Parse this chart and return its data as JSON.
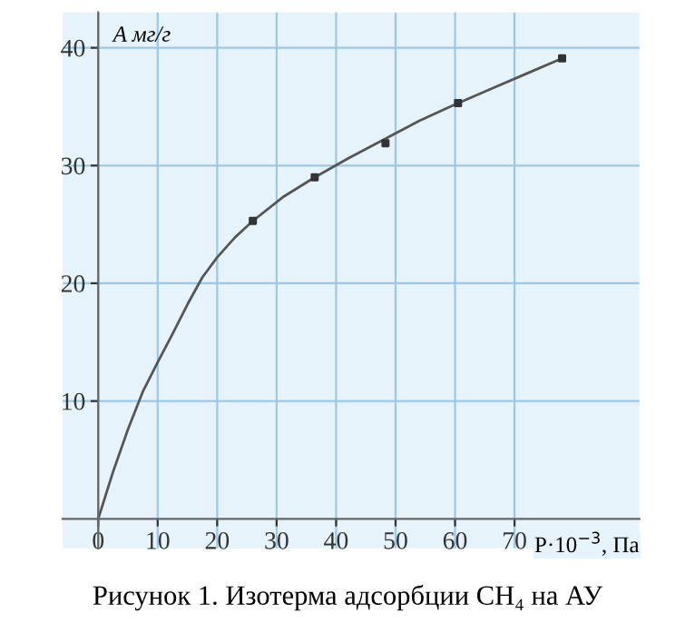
{
  "chart_data": {
    "type": "line",
    "title": "Рисунок 1. Изотерма адсорбции CH₄ на АУ",
    "xlabel": "P·10$^{−3}$, Па",
    "ylabel": "A мг/г",
    "series": [
      {
        "color": "#555555",
        "x": [
          0,
          2.5,
          5,
          7.5,
          10,
          12.5,
          15,
          17.5,
          20,
          23,
          26,
          31,
          36.4,
          42,
          48,
          54,
          60.5,
          66,
          72,
          78
        ],
        "values": [
          0,
          4,
          7.6,
          10.8,
          13.3,
          15.7,
          18.2,
          20.5,
          22.2,
          23.9,
          25.3,
          27.3,
          29.0,
          30.6,
          32.2,
          33.8,
          35.3,
          36.5,
          37.8,
          39.1
        ]
      },
      {
        "type": "scatter",
        "color": "#333333",
        "marker": "square",
        "x": [
          26,
          36.4,
          48.3,
          60.5,
          78
        ],
        "values": [
          25.3,
          29.0,
          31.9,
          35.3,
          39.1
        ]
      }
    ],
    "xlim": [
      -6,
      91
    ],
    "ylim": [
      -2.5,
      43
    ],
    "xticks": [
      0,
      10,
      20,
      30,
      40,
      50,
      60,
      70
    ],
    "yticks": [
      10,
      20,
      30,
      40
    ],
    "grid": true
  }
}
